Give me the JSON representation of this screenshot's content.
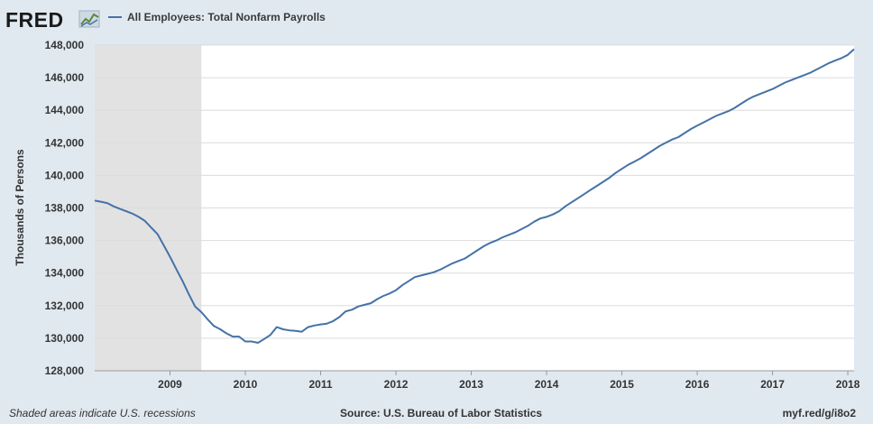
{
  "header": {
    "logo_text": "FRED",
    "logo_icon": "fred-graph-icon",
    "legend_label": "All Employees: Total Nonfarm Payrolls"
  },
  "footer": {
    "recession_note": "Shaded areas indicate U.S. recessions",
    "source": "Source: U.S. Bureau of Labor Statistics",
    "short_url": "myf.red/g/i8o2"
  },
  "colors": {
    "line": "#4572a7",
    "background": "#e1e9f0",
    "plot_background": "#ffffff",
    "recession_shade": "#e2e2e2",
    "grid": "#dcdcdc"
  },
  "chart_data": {
    "type": "line",
    "title": "All Employees: Total Nonfarm Payrolls",
    "xlabel": "",
    "ylabel": "Thousands of Persons",
    "xlim": [
      2008.0,
      2018.083
    ],
    "ylim": [
      128000,
      148000
    ],
    "y_ticks": [
      128000,
      130000,
      132000,
      134000,
      136000,
      138000,
      140000,
      142000,
      144000,
      146000,
      148000
    ],
    "y_tick_labels": [
      "128,000",
      "130,000",
      "132,000",
      "134,000",
      "136,000",
      "138,000",
      "140,000",
      "142,000",
      "144,000",
      "146,000",
      "148,000"
    ],
    "x_ticks": [
      2009,
      2010,
      2011,
      2012,
      2013,
      2014,
      2015,
      2016,
      2017,
      2018
    ],
    "x_tick_labels": [
      "2009",
      "2010",
      "2011",
      "2012",
      "2013",
      "2014",
      "2015",
      "2016",
      "2017",
      "2018"
    ],
    "recession": {
      "label": "Recession",
      "start": 2008.0,
      "end": 2009.417
    },
    "grid": true,
    "series": [
      {
        "name": "All Employees: Total Nonfarm Payrolls",
        "points": [
          [
            2008.0,
            138450
          ],
          [
            2008.083,
            138380
          ],
          [
            2008.167,
            138300
          ],
          [
            2008.25,
            138100
          ],
          [
            2008.333,
            137950
          ],
          [
            2008.417,
            137800
          ],
          [
            2008.5,
            137650
          ],
          [
            2008.583,
            137450
          ],
          [
            2008.667,
            137200
          ],
          [
            2008.75,
            136800
          ],
          [
            2008.833,
            136400
          ],
          [
            2008.917,
            135700
          ],
          [
            2009.0,
            135000
          ],
          [
            2009.083,
            134250
          ],
          [
            2009.167,
            133500
          ],
          [
            2009.25,
            132700
          ],
          [
            2009.333,
            131950
          ],
          [
            2009.417,
            131600
          ],
          [
            2009.5,
            131150
          ],
          [
            2009.583,
            130750
          ],
          [
            2009.667,
            130550
          ],
          [
            2009.75,
            130300
          ],
          [
            2009.833,
            130100
          ],
          [
            2009.917,
            130100
          ],
          [
            2010.0,
            129800
          ],
          [
            2010.083,
            129800
          ],
          [
            2010.167,
            129720
          ],
          [
            2010.25,
            129950
          ],
          [
            2010.333,
            130200
          ],
          [
            2010.417,
            130680
          ],
          [
            2010.5,
            130550
          ],
          [
            2010.583,
            130480
          ],
          [
            2010.667,
            130450
          ],
          [
            2010.75,
            130400
          ],
          [
            2010.833,
            130680
          ],
          [
            2010.917,
            130780
          ],
          [
            2011.0,
            130850
          ],
          [
            2011.083,
            130900
          ],
          [
            2011.167,
            131050
          ],
          [
            2011.25,
            131300
          ],
          [
            2011.333,
            131650
          ],
          [
            2011.417,
            131750
          ],
          [
            2011.5,
            131950
          ],
          [
            2011.583,
            132050
          ],
          [
            2011.667,
            132150
          ],
          [
            2011.75,
            132400
          ],
          [
            2011.833,
            132600
          ],
          [
            2011.917,
            132750
          ],
          [
            2012.0,
            132950
          ],
          [
            2012.083,
            133250
          ],
          [
            2012.167,
            133500
          ],
          [
            2012.25,
            133750
          ],
          [
            2012.333,
            133850
          ],
          [
            2012.417,
            133950
          ],
          [
            2012.5,
            134050
          ],
          [
            2012.583,
            134200
          ],
          [
            2012.667,
            134400
          ],
          [
            2012.75,
            134600
          ],
          [
            2012.833,
            134750
          ],
          [
            2012.917,
            134900
          ],
          [
            2013.0,
            135150
          ],
          [
            2013.083,
            135400
          ],
          [
            2013.167,
            135650
          ],
          [
            2013.25,
            135850
          ],
          [
            2013.333,
            136000
          ],
          [
            2013.417,
            136200
          ],
          [
            2013.5,
            136350
          ],
          [
            2013.583,
            136500
          ],
          [
            2013.667,
            136700
          ],
          [
            2013.75,
            136900
          ],
          [
            2013.833,
            137150
          ],
          [
            2013.917,
            137350
          ],
          [
            2014.0,
            137450
          ],
          [
            2014.083,
            137600
          ],
          [
            2014.167,
            137800
          ],
          [
            2014.25,
            138100
          ],
          [
            2014.333,
            138350
          ],
          [
            2014.417,
            138600
          ],
          [
            2014.5,
            138850
          ],
          [
            2014.583,
            139100
          ],
          [
            2014.667,
            139350
          ],
          [
            2014.75,
            139600
          ],
          [
            2014.833,
            139850
          ],
          [
            2014.917,
            140150
          ],
          [
            2015.0,
            140400
          ],
          [
            2015.083,
            140650
          ],
          [
            2015.167,
            140850
          ],
          [
            2015.25,
            141050
          ],
          [
            2015.333,
            141300
          ],
          [
            2015.417,
            141550
          ],
          [
            2015.5,
            141800
          ],
          [
            2015.583,
            142000
          ],
          [
            2015.667,
            142200
          ],
          [
            2015.75,
            142350
          ],
          [
            2015.833,
            142600
          ],
          [
            2015.917,
            142850
          ],
          [
            2016.0,
            143050
          ],
          [
            2016.083,
            143250
          ],
          [
            2016.167,
            143450
          ],
          [
            2016.25,
            143650
          ],
          [
            2016.333,
            143800
          ],
          [
            2016.417,
            143950
          ],
          [
            2016.5,
            144150
          ],
          [
            2016.583,
            144400
          ],
          [
            2016.667,
            144650
          ],
          [
            2016.75,
            144850
          ],
          [
            2016.833,
            145000
          ],
          [
            2016.917,
            145150
          ],
          [
            2017.0,
            145300
          ],
          [
            2017.083,
            145500
          ],
          [
            2017.167,
            145700
          ],
          [
            2017.25,
            145850
          ],
          [
            2017.333,
            146000
          ],
          [
            2017.417,
            146150
          ],
          [
            2017.5,
            146300
          ],
          [
            2017.583,
            146500
          ],
          [
            2017.667,
            146700
          ],
          [
            2017.75,
            146900
          ],
          [
            2017.833,
            147050
          ],
          [
            2017.917,
            147200
          ],
          [
            2018.0,
            147400
          ],
          [
            2018.083,
            147750
          ]
        ]
      }
    ]
  }
}
